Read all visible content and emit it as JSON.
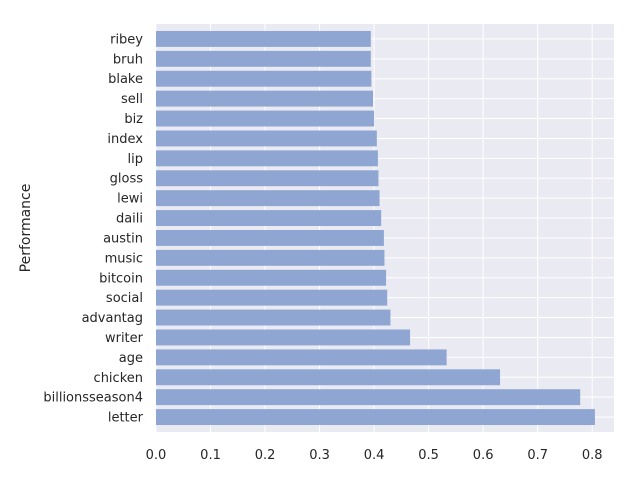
{
  "chart_data": {
    "type": "bar",
    "orientation": "horizontal",
    "categories": [
      "letter",
      "billionsseason4",
      "chicken",
      "age",
      "writer",
      "advantag",
      "social",
      "bitcoin",
      "music",
      "austin",
      "daili",
      "lewi",
      "gloss",
      "lip",
      "index",
      "biz",
      "sell",
      "blake",
      "bruh",
      "ribey"
    ],
    "values": [
      0.805,
      0.778,
      0.631,
      0.533,
      0.466,
      0.43,
      0.424,
      0.422,
      0.419,
      0.418,
      0.413,
      0.41,
      0.408,
      0.407,
      0.405,
      0.4,
      0.398,
      0.395,
      0.394,
      0.394
    ],
    "title": "",
    "xlabel": "",
    "ylabel": "Performance",
    "xlim": [
      0,
      0.84
    ],
    "xticks": [
      "0.0",
      "0.1",
      "0.2",
      "0.3",
      "0.4",
      "0.5",
      "0.6",
      "0.7",
      "0.8"
    ],
    "grid": true,
    "legend": "none",
    "colors": {
      "bar": "#8fa6d3",
      "plot_background": "#eaeaf2",
      "grid": "#ffffff",
      "text": "#262626"
    }
  }
}
